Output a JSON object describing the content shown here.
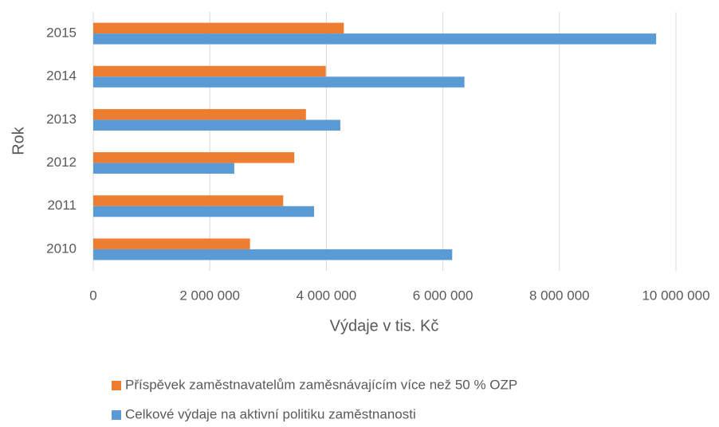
{
  "chart_data": {
    "type": "barh",
    "categories": [
      "2010",
      "2011",
      "2012",
      "2013",
      "2014",
      "2015"
    ],
    "series": [
      {
        "name": "Příspěvek zaměstnavatelům zaměsnávajícím více než 50 % OZP",
        "color": "#ed7d31",
        "values": [
          2690000,
          3260000,
          3450000,
          3650000,
          3990000,
          4300000
        ]
      },
      {
        "name": "Celkové výdaje na aktivní politiku zaměstnanosti",
        "color": "#5b9bd5",
        "values": [
          6160000,
          3790000,
          2420000,
          4240000,
          6370000,
          9660000
        ]
      }
    ],
    "xlabel": "Výdaje v tis. Kč",
    "ylabel": "Rok",
    "xlim": [
      0,
      10000000
    ],
    "xticks": [
      0,
      {
        "value": 2000000,
        "label": "2 000 000"
      },
      {
        "value": 4000000,
        "label": "4 000 000"
      },
      {
        "value": 6000000,
        "label": "6 000 000"
      },
      {
        "value": 8000000,
        "label": "8 000 000"
      },
      {
        "value": 10000000,
        "label": "10 000 000"
      }
    ],
    "grid": true,
    "legend": "bottom"
  }
}
